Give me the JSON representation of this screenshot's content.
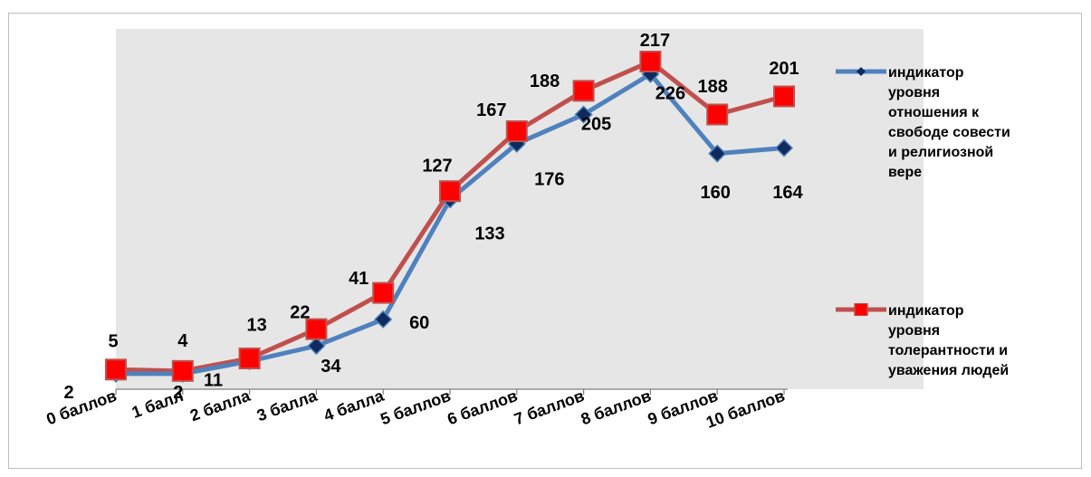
{
  "chart_data": {
    "type": "line",
    "categories": [
      "0 баллов",
      "1 балл",
      "2 балла",
      "3 балла",
      "4 балла",
      "5 баллов",
      "6 баллов",
      "7 баллов",
      "8 баллов",
      "9 баллов",
      "10 баллов"
    ],
    "ylim": [
      0,
      235
    ],
    "grid": false,
    "legend_position": "right",
    "plot_background": "#e6e6e6",
    "series": [
      {
        "name": "индикатор уровня отношения к свободе совести и религиозной вере",
        "color": "#4f81bd",
        "marker": "diamond",
        "marker_color": "#0f2a5c",
        "values": [
          2,
          2,
          11,
          22,
          41,
          127,
          167,
          188,
          217,
          160,
          164
        ],
        "labels": [
          "2",
          "2",
          "11",
          "22",
          "41",
          "127",
          "167",
          "188",
          "217",
          "160",
          "164"
        ]
      },
      {
        "name": "индикатор уровня толерантности и уважения людей",
        "color": "#c0504d",
        "marker": "square",
        "marker_color": "#ff0000",
        "values": [
          5,
          4,
          13,
          34,
          60,
          133,
          176,
          205,
          226,
          188,
          201
        ],
        "labels": [
          "5",
          "4",
          "13",
          "34",
          "60",
          "133",
          "176",
          "205",
          "226",
          "188",
          "201"
        ]
      }
    ]
  },
  "legend": [
    {
      "label": "индикатор\nуровня\nотношения к\nсвободе совести\nи религиозной\nвере"
    },
    {
      "label": "индикатор\nуровня\nтолерантности и\nуважения людей"
    }
  ]
}
